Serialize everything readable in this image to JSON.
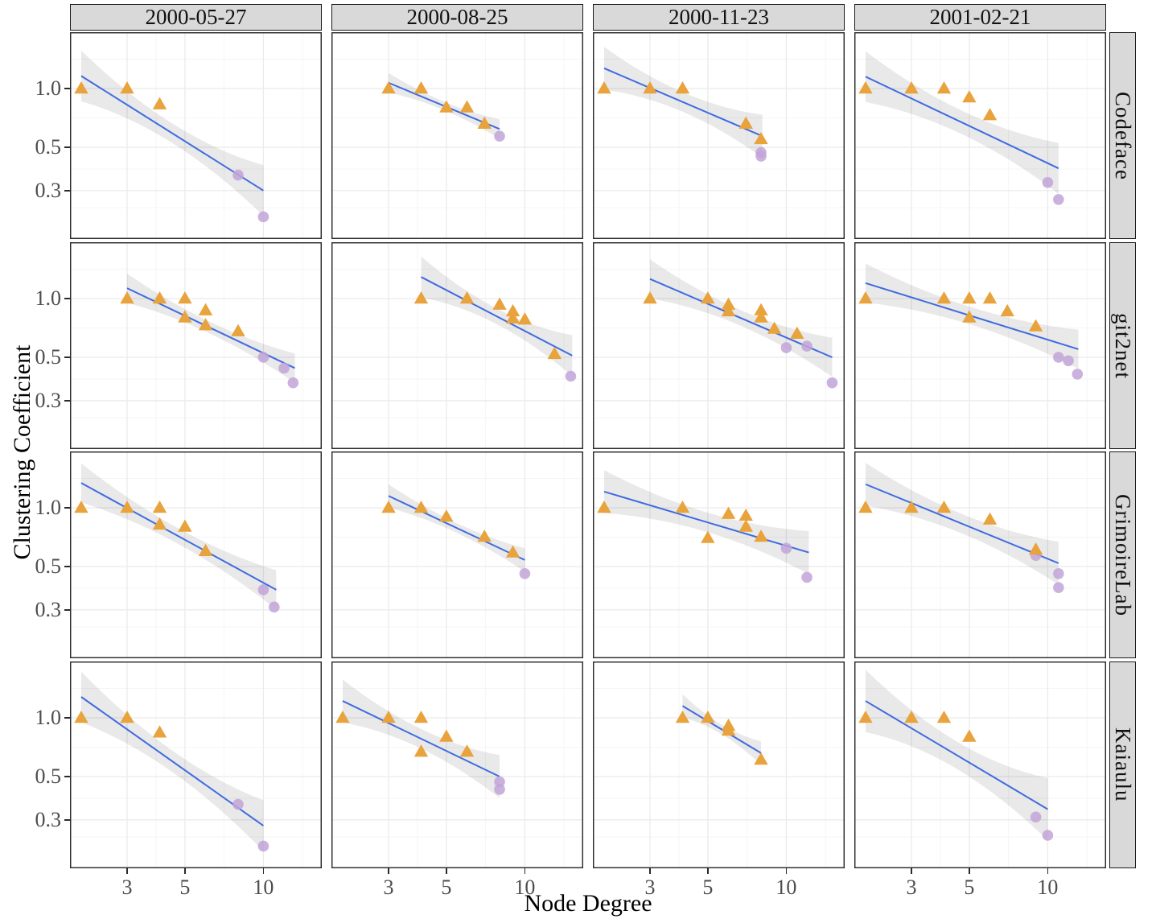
{
  "figure": {
    "xlabel": "Node Degree",
    "ylabel": "Clustering Coefficient"
  },
  "colors": {
    "strip_bg": "#D9D9D9",
    "strip_border": "#1a1a1a",
    "panel_border": "#2b2b2b",
    "grid_major": "#EBEBEB",
    "grid_minor": "#F5F5F5",
    "triangle": "#E8A33C",
    "circle": "#C2A5D8",
    "trend": "#3F6BE0",
    "band": "rgba(0,0,0,0.085)",
    "tick_text": "#4D4D4D"
  },
  "chart_data": {
    "type": "scatter",
    "x_scale": "log",
    "y_scale": "log",
    "xlabel": "Node Degree",
    "ylabel": "Clustering Coefficient",
    "facet_columns": [
      "2000-05-27",
      "2000-08-25",
      "2000-11-23",
      "2001-02-21"
    ],
    "facet_rows": [
      "Codeface",
      "git2net",
      "GrimoireLab",
      "Kaiaulu"
    ],
    "x_ticks": [
      3,
      5,
      10
    ],
    "y_ticks": [
      1.0,
      0.5,
      0.3
    ],
    "x_minor": [
      3.873,
      7.071,
      14.142
    ],
    "y_minor": [
      1.414,
      0.707,
      0.387,
      0.245
    ],
    "x_domain": [
      1.8,
      16.6
    ],
    "y_domain": [
      0.17,
      1.95
    ],
    "grid": true,
    "legend": "none",
    "markers": {
      "triangle_color": "#E8A33C",
      "circle_color": "#C2A5D8",
      "trend_color": "#3F6BE0"
    },
    "panels": [
      {
        "row": "Codeface",
        "col": "2000-05-27",
        "triangles": [
          [
            2,
            1.0
          ],
          [
            3,
            1.0
          ],
          [
            4,
            0.83
          ]
        ],
        "circles": [
          [
            8,
            0.36
          ],
          [
            10,
            0.22
          ]
        ],
        "trend": [
          [
            2,
            1.16
          ],
          [
            10,
            0.3
          ]
        ],
        "band_mid": 0.05,
        "band_end": 0.13
      },
      {
        "row": "Codeface",
        "col": "2000-08-25",
        "triangles": [
          [
            3,
            1.0
          ],
          [
            4,
            1.0
          ],
          [
            5,
            0.8
          ],
          [
            6,
            0.8
          ],
          [
            7,
            0.66
          ]
        ],
        "circles": [
          [
            8,
            0.57
          ]
        ],
        "trend": [
          [
            3,
            1.07
          ],
          [
            8,
            0.62
          ]
        ],
        "band_mid": 0.022,
        "band_end": 0.05
      },
      {
        "row": "Codeface",
        "col": "2000-11-23",
        "triangles": [
          [
            2,
            1.0
          ],
          [
            3,
            1.0
          ],
          [
            4,
            1.0
          ],
          [
            7,
            0.66
          ],
          [
            8,
            0.55
          ]
        ],
        "circles": [
          [
            8,
            0.47
          ],
          [
            8,
            0.45
          ]
        ],
        "trend": [
          [
            2,
            1.27
          ],
          [
            8.1,
            0.57
          ]
        ],
        "band_mid": 0.05,
        "band_end": 0.11
      },
      {
        "row": "Codeface",
        "col": "2001-02-21",
        "triangles": [
          [
            2,
            1.0
          ],
          [
            3,
            1.0
          ],
          [
            4,
            1.0
          ],
          [
            5,
            0.9
          ],
          [
            6,
            0.73
          ]
        ],
        "circles": [
          [
            10,
            0.33
          ],
          [
            11,
            0.27
          ]
        ],
        "trend": [
          [
            2,
            1.15
          ],
          [
            11,
            0.39
          ]
        ],
        "band_mid": 0.06,
        "band_end": 0.13
      },
      {
        "row": "git2net",
        "col": "2000-05-27",
        "triangles": [
          [
            3,
            1.0
          ],
          [
            4,
            1.0
          ],
          [
            5,
            1.0
          ],
          [
            5,
            0.8
          ],
          [
            6,
            0.87
          ],
          [
            6,
            0.73
          ],
          [
            8,
            0.68
          ]
        ],
        "circles": [
          [
            10,
            0.5
          ],
          [
            12,
            0.44
          ],
          [
            13,
            0.37
          ]
        ],
        "trend": [
          [
            3,
            1.13
          ],
          [
            13.2,
            0.44
          ]
        ],
        "band_mid": 0.03,
        "band_end": 0.075
      },
      {
        "row": "git2net",
        "col": "2000-08-25",
        "triangles": [
          [
            4,
            1.0
          ],
          [
            6,
            1.0
          ],
          [
            8,
            0.93
          ],
          [
            9,
            0.86
          ],
          [
            9,
            0.79
          ],
          [
            10,
            0.78
          ],
          [
            13,
            0.52
          ]
        ],
        "circles": [
          [
            15,
            0.4
          ]
        ],
        "trend": [
          [
            4,
            1.29
          ],
          [
            15.2,
            0.51
          ]
        ],
        "band_mid": 0.04,
        "band_end": 0.105
      },
      {
        "row": "git2net",
        "col": "2000-11-23",
        "triangles": [
          [
            3,
            1.0
          ],
          [
            5,
            1.0
          ],
          [
            6,
            0.93
          ],
          [
            6,
            0.86
          ],
          [
            8,
            0.87
          ],
          [
            8,
            0.8
          ],
          [
            9,
            0.7
          ],
          [
            11,
            0.66
          ]
        ],
        "circles": [
          [
            10,
            0.56
          ],
          [
            12,
            0.57
          ],
          [
            15,
            0.37
          ]
        ],
        "trend": [
          [
            3,
            1.26
          ],
          [
            15,
            0.5
          ]
        ],
        "band_mid": 0.04,
        "band_end": 0.1
      },
      {
        "row": "git2net",
        "col": "2001-02-21",
        "triangles": [
          [
            2,
            1.0
          ],
          [
            4,
            1.0
          ],
          [
            5,
            1.0
          ],
          [
            5,
            0.8
          ],
          [
            6,
            1.0
          ],
          [
            7,
            0.86
          ],
          [
            9,
            0.72
          ]
        ],
        "circles": [
          [
            11,
            0.5
          ],
          [
            12,
            0.48
          ],
          [
            13,
            0.41
          ]
        ],
        "trend": [
          [
            2,
            1.2
          ],
          [
            13.1,
            0.55
          ]
        ],
        "band_mid": 0.045,
        "band_end": 0.1
      },
      {
        "row": "GrimoireLab",
        "col": "2000-05-27",
        "triangles": [
          [
            2,
            1.0
          ],
          [
            3,
            1.0
          ],
          [
            4,
            1.0
          ],
          [
            4,
            0.82
          ],
          [
            5,
            0.8
          ],
          [
            6,
            0.6
          ]
        ],
        "circles": [
          [
            10,
            0.38
          ],
          [
            11,
            0.31
          ]
        ],
        "trend": [
          [
            2,
            1.34
          ],
          [
            11.2,
            0.38
          ]
        ],
        "band_mid": 0.04,
        "band_end": 0.1
      },
      {
        "row": "GrimoireLab",
        "col": "2000-08-25",
        "triangles": [
          [
            3,
            1.0
          ],
          [
            4,
            1.0
          ],
          [
            5,
            0.9
          ],
          [
            7,
            0.71
          ],
          [
            9,
            0.59
          ]
        ],
        "circles": [
          [
            10,
            0.46
          ]
        ],
        "trend": [
          [
            3,
            1.15
          ],
          [
            10,
            0.54
          ]
        ],
        "band_mid": 0.025,
        "band_end": 0.06
      },
      {
        "row": "GrimoireLab",
        "col": "2000-11-23",
        "triangles": [
          [
            2,
            1.0
          ],
          [
            4,
            1.0
          ],
          [
            5,
            0.7
          ],
          [
            6,
            0.93
          ],
          [
            7,
            0.91
          ],
          [
            7,
            0.8
          ],
          [
            8,
            0.71
          ]
        ],
        "circles": [
          [
            10,
            0.62
          ],
          [
            12,
            0.44
          ]
        ],
        "trend": [
          [
            2,
            1.21
          ],
          [
            12.2,
            0.59
          ]
        ],
        "band_mid": 0.05,
        "band_end": 0.11
      },
      {
        "row": "GrimoireLab",
        "col": "2001-02-21",
        "triangles": [
          [
            2,
            1.0
          ],
          [
            3,
            1.0
          ],
          [
            4,
            1.0
          ],
          [
            6,
            0.87
          ],
          [
            9,
            0.61
          ]
        ],
        "circles": [
          [
            9,
            0.57
          ],
          [
            11,
            0.46
          ],
          [
            11,
            0.39
          ]
        ],
        "trend": [
          [
            2,
            1.32
          ],
          [
            11,
            0.52
          ]
        ],
        "band_mid": 0.05,
        "band_end": 0.11
      },
      {
        "row": "Kaiaulu",
        "col": "2000-05-27",
        "triangles": [
          [
            2,
            1.0
          ],
          [
            3,
            1.0
          ],
          [
            4,
            0.84
          ]
        ],
        "circles": [
          [
            8,
            0.36
          ],
          [
            10,
            0.22
          ]
        ],
        "trend": [
          [
            2,
            1.28
          ],
          [
            10,
            0.28
          ]
        ],
        "band_mid": 0.055,
        "band_end": 0.13
      },
      {
        "row": "Kaiaulu",
        "col": "2000-08-25",
        "triangles": [
          [
            2,
            1.0
          ],
          [
            3,
            1.0
          ],
          [
            4,
            1.0
          ],
          [
            4,
            0.67
          ],
          [
            5,
            0.8
          ],
          [
            6,
            0.67
          ]
        ],
        "circles": [
          [
            8,
            0.47
          ],
          [
            8,
            0.43
          ]
        ],
        "trend": [
          [
            2,
            1.22
          ],
          [
            8,
            0.5
          ]
        ],
        "band_mid": 0.05,
        "band_end": 0.11
      },
      {
        "row": "Kaiaulu",
        "col": "2000-11-23",
        "triangles": [
          [
            4,
            1.0
          ],
          [
            5,
            1.0
          ],
          [
            6,
            0.91
          ],
          [
            6,
            0.86
          ],
          [
            8,
            0.61
          ]
        ],
        "circles": [],
        "trend": [
          [
            4,
            1.15
          ],
          [
            8,
            0.66
          ]
        ],
        "band_mid": 0.025,
        "band_end": 0.06
      },
      {
        "row": "Kaiaulu",
        "col": "2001-02-21",
        "triangles": [
          [
            2,
            1.0
          ],
          [
            3,
            1.0
          ],
          [
            4,
            1.0
          ],
          [
            5,
            0.8
          ]
        ],
        "circles": [
          [
            9,
            0.31
          ],
          [
            10,
            0.25
          ]
        ],
        "trend": [
          [
            2,
            1.22
          ],
          [
            10,
            0.34
          ]
        ],
        "band_mid": 0.07,
        "band_end": 0.16
      }
    ]
  }
}
